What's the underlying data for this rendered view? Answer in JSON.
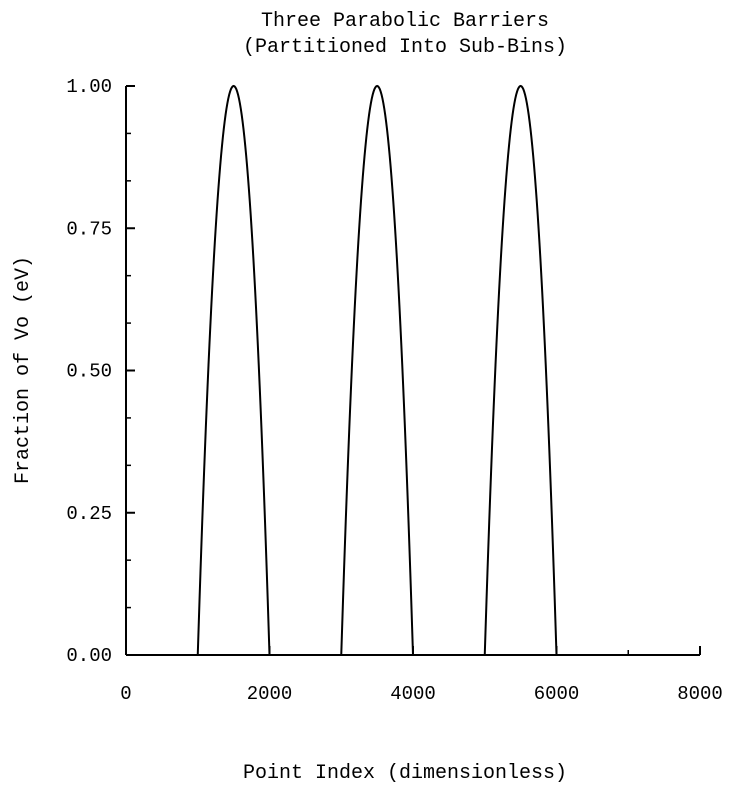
{
  "chart_data": {
    "type": "line",
    "title": "Three Parabolic Barriers",
    "subtitle": "(Partitioned Into Sub-Bins)",
    "xlabel": "Point Index (dimensionless)",
    "ylabel": "Fraction of Vo (eV)",
    "xlim": [
      0,
      8000
    ],
    "ylim": [
      0,
      1
    ],
    "x_ticks": [
      0,
      2000,
      4000,
      6000,
      8000
    ],
    "x_tick_labels": [
      "0",
      "2000",
      "4000",
      "6000",
      "8000"
    ],
    "y_ticks": [
      0,
      0.25,
      0.5,
      0.75,
      1.0
    ],
    "y_tick_labels": [
      "0.00",
      "0.25",
      "0.50",
      "0.75",
      "1.00"
    ],
    "grid": false,
    "legend": "none",
    "series": [
      {
        "color": "#000000",
        "barriers": [
          {
            "x_start": 1000,
            "x_peak": 1500,
            "x_end": 2000,
            "peak": 1.0
          },
          {
            "x_start": 3000,
            "x_peak": 3500,
            "x_end": 4000,
            "peak": 1.0
          },
          {
            "x_start": 5000,
            "x_peak": 5500,
            "x_end": 6000,
            "peak": 1.0
          }
        ]
      }
    ]
  }
}
